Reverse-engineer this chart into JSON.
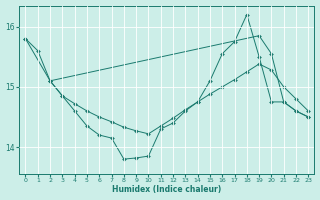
{
  "xlabel": "Humidex (Indice chaleur)",
  "bg_color": "#cceee8",
  "line_color": "#1a7a6e",
  "grid_color": "#ffffff",
  "xlim": [
    -0.5,
    23.5
  ],
  "ylim": [
    13.55,
    16.35
  ],
  "yticks": [
    14,
    15,
    16
  ],
  "xticks": [
    0,
    1,
    2,
    3,
    4,
    5,
    6,
    7,
    8,
    9,
    10,
    11,
    12,
    13,
    14,
    15,
    16,
    17,
    18,
    19,
    20,
    21,
    22,
    23
  ],
  "series1_x": [
    0,
    1,
    2,
    3,
    4,
    5,
    6,
    7,
    8,
    9,
    10,
    11,
    12,
    13,
    14,
    15,
    16,
    17,
    18,
    19,
    20,
    21,
    22,
    23
  ],
  "series1_y": [
    15.8,
    15.6,
    15.1,
    14.85,
    14.6,
    14.35,
    14.2,
    14.15,
    13.8,
    13.82,
    13.85,
    14.3,
    14.4,
    14.6,
    14.75,
    15.1,
    15.55,
    15.75,
    16.2,
    15.5,
    14.75,
    14.75,
    14.6,
    14.5
  ],
  "series2_x": [
    2,
    3,
    4,
    5,
    6,
    7,
    8,
    9,
    10,
    11,
    12,
    13,
    14,
    15,
    16,
    17,
    18,
    19,
    20,
    21,
    22,
    23
  ],
  "series2_y": [
    15.1,
    14.85,
    14.72,
    14.6,
    14.5,
    14.42,
    14.33,
    14.27,
    14.22,
    14.35,
    14.48,
    14.62,
    14.75,
    14.88,
    15.0,
    15.12,
    15.25,
    15.38,
    15.28,
    15.0,
    14.8,
    14.6
  ],
  "series3_x": [
    0,
    2,
    19,
    20,
    21,
    22,
    23
  ],
  "series3_y": [
    15.8,
    15.1,
    15.85,
    15.55,
    14.75,
    14.6,
    14.5
  ]
}
